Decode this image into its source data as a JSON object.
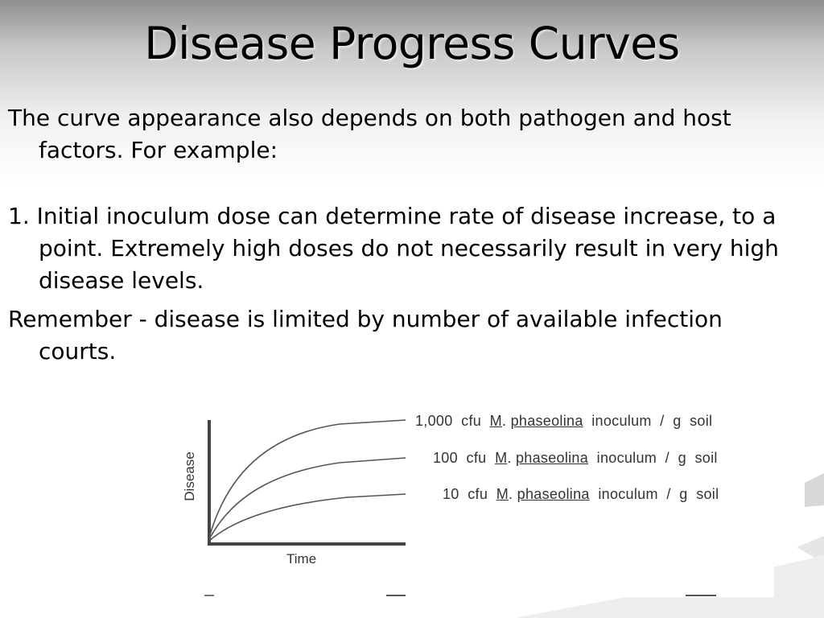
{
  "slide": {
    "title": "Disease Progress Curves",
    "paragraphs": [
      "The curve appearance also depends on both pathogen and host factors. For example:",
      "1. Initial inoculum dose can determine rate of disease increase, to a point. Extremely high doses do not necessarily result in very high disease levels.",
      "Remember - disease is limited by number of available infection courts."
    ]
  },
  "figure": {
    "y_axis_label": "Disease",
    "x_axis_label": "Time",
    "curves": [
      {
        "prefix": "1,000  cfu  ",
        "genus": "M",
        "species": "phaseolina",
        "suffix": "  inoculum  /  g  soil"
      },
      {
        "prefix": "100  cfu  ",
        "genus": "M",
        "species": "phaseolina",
        "suffix": "  inoculum  /  g  soil"
      },
      {
        "prefix": "10  cfu  ",
        "genus": "M",
        "species": "phaseolina",
        "suffix": "  inoculum  /  g  soil"
      }
    ]
  }
}
